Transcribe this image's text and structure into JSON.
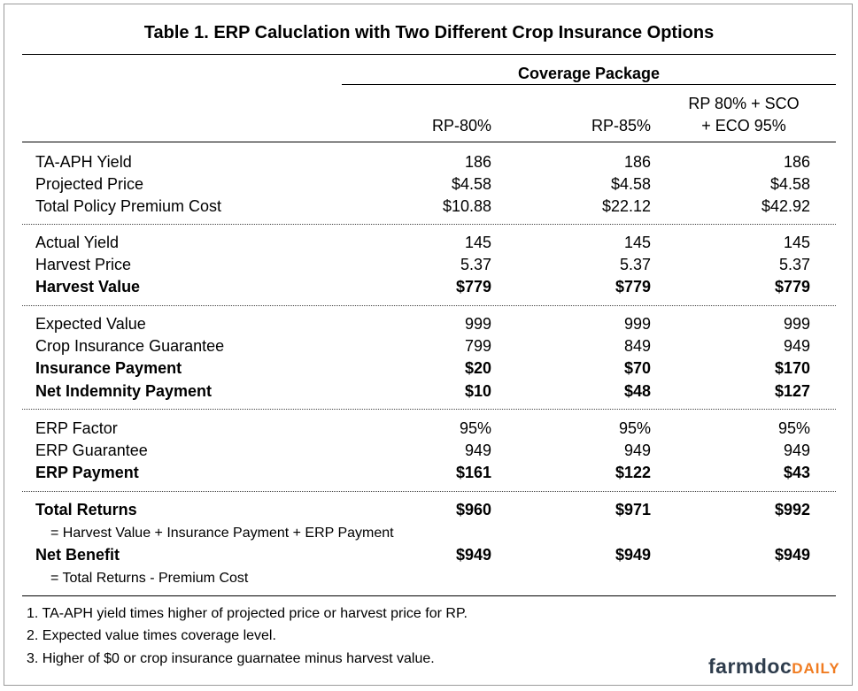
{
  "title": "Table 1. ERP Caluclation with Two Different Crop Insurance Options",
  "header": {
    "group_label": "Coverage Package",
    "columns": [
      "RP-80%",
      "RP-85%"
    ],
    "col3_line1": "RP 80% + SCO",
    "col3_line2": "+ ECO 95%"
  },
  "rows": {
    "ta_aph": {
      "label": "TA-APH Yield",
      "values": [
        "186",
        "186",
        "186"
      ]
    },
    "proj_price": {
      "label": "Projected Price",
      "values": [
        "$4.58",
        "$4.58",
        "$4.58"
      ]
    },
    "premium": {
      "label": "Total Policy Premium Cost",
      "values": [
        "$10.88",
        "$22.12",
        "$42.92"
      ]
    },
    "actual_yield": {
      "label": "Actual Yield",
      "values": [
        "145",
        "145",
        "145"
      ]
    },
    "harvest_price": {
      "label": "Harvest Price",
      "values": [
        "5.37",
        "5.37",
        "5.37"
      ]
    },
    "harvest_value": {
      "label": "Harvest Value",
      "values": [
        "$779",
        "$779",
        "$779"
      ]
    },
    "expected_value": {
      "label": "Expected Value",
      "values": [
        "999",
        "999",
        "999"
      ]
    },
    "guarantee": {
      "label": "Crop Insurance Guarantee",
      "values": [
        "799",
        "849",
        "949"
      ]
    },
    "ins_payment": {
      "label": "Insurance Payment",
      "values": [
        "$20",
        "$70",
        "$170"
      ]
    },
    "net_indemnity": {
      "label": "Net Indemnity Payment",
      "values": [
        "$10",
        "$48",
        "$127"
      ]
    },
    "erp_factor": {
      "label": "ERP Factor",
      "values": [
        "95%",
        "95%",
        "95%"
      ]
    },
    "erp_guarantee": {
      "label": "ERP Guarantee",
      "values": [
        "949",
        "949",
        "949"
      ]
    },
    "erp_payment": {
      "label": "ERP Payment",
      "values": [
        "$161",
        "$122",
        "$43"
      ]
    },
    "total_returns": {
      "label": "Total Returns",
      "values": [
        "$960",
        "$971",
        "$992"
      ]
    },
    "net_benefit": {
      "label": "Net Benefit",
      "values": [
        "$949",
        "$949",
        "$949"
      ]
    }
  },
  "notes": {
    "total_returns_formula": "= Harvest Value + Insurance Payment + ERP Payment",
    "net_benefit_formula": "= Total Returns - Premium Cost"
  },
  "footnotes": [
    "1. TA-APH yield times higher of projected price or harvest price for RP.",
    "2. Expected value times coverage level.",
    "3. Higher of $0 or crop insurance guarnatee minus harvest value."
  ],
  "logo": {
    "part1": "farmdoc",
    "part2": "DAILY"
  }
}
